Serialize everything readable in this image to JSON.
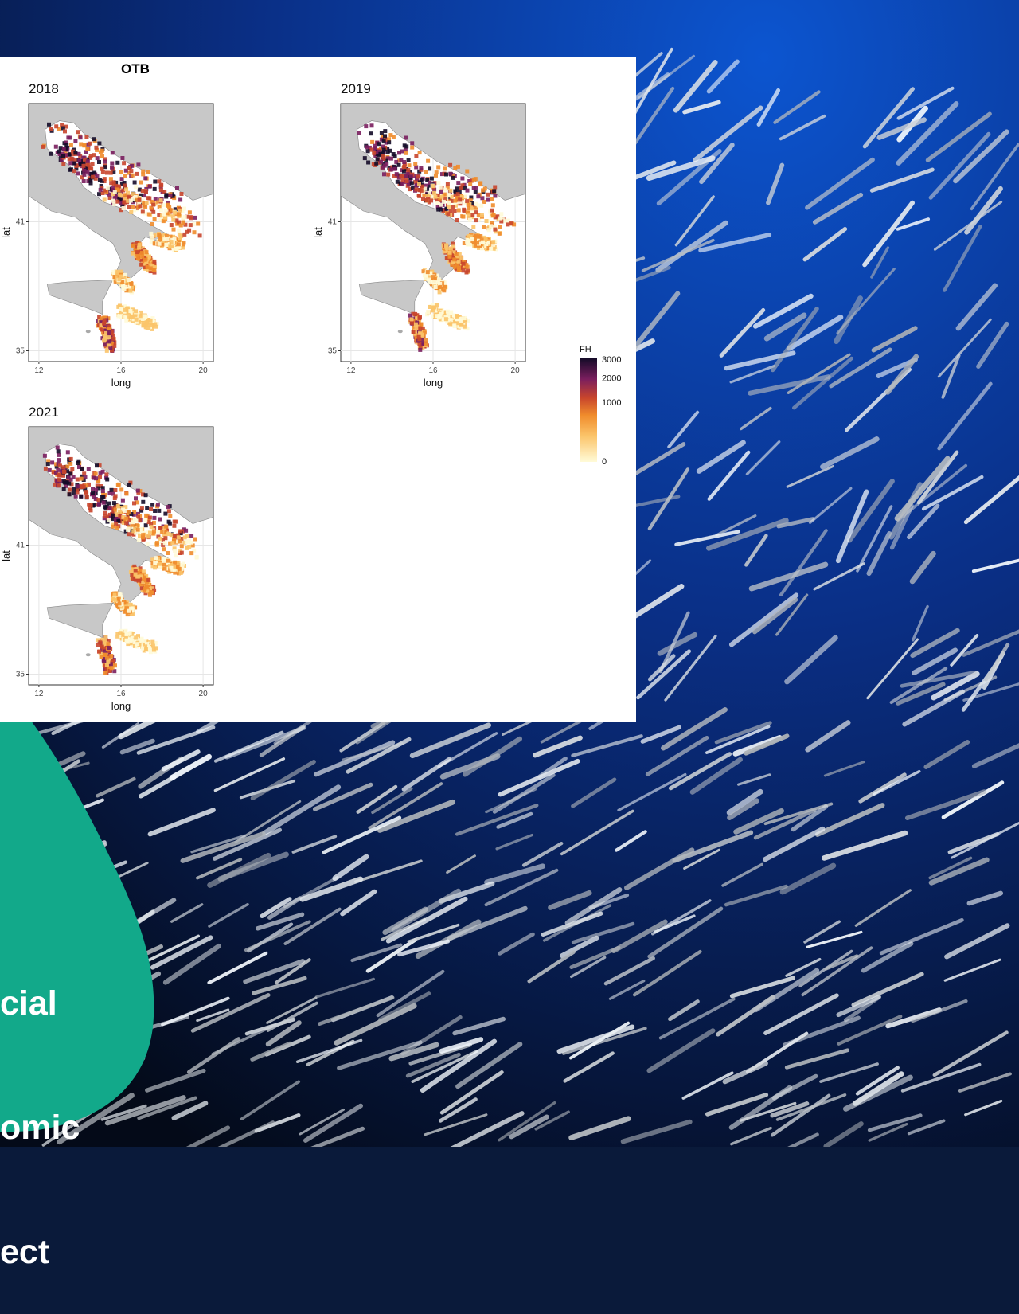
{
  "banner": {
    "lines": [
      "cial",
      "omic",
      "ect"
    ],
    "color": "#12a98a"
  },
  "background": {
    "subject": "school of silvery fish in deep blue water",
    "water_top": "#0b46b8",
    "water_bottom": "#050b1a"
  },
  "chart_data": {
    "type": "heatmap",
    "title": "OTB",
    "panels": [
      {
        "label": "2018"
      },
      {
        "label": "2019"
      },
      {
        "label": "2021"
      }
    ],
    "xlabel": "long",
    "ylabel": "lat",
    "x_ticks": [
      12,
      16,
      20
    ],
    "y_ticks": [
      35,
      41
    ],
    "xlim": [
      11.5,
      20.5
    ],
    "ylim": [
      34.5,
      46.5
    ],
    "legend": {
      "title": "FH",
      "ticks": [
        0,
        1000,
        2000,
        3000
      ],
      "placement": "right"
    },
    "colors": [
      "#fffbd8",
      "#fbc46a",
      "#f08c2c",
      "#c8452c",
      "#7a1e5e",
      "#140b28"
    ],
    "grid": true
  }
}
